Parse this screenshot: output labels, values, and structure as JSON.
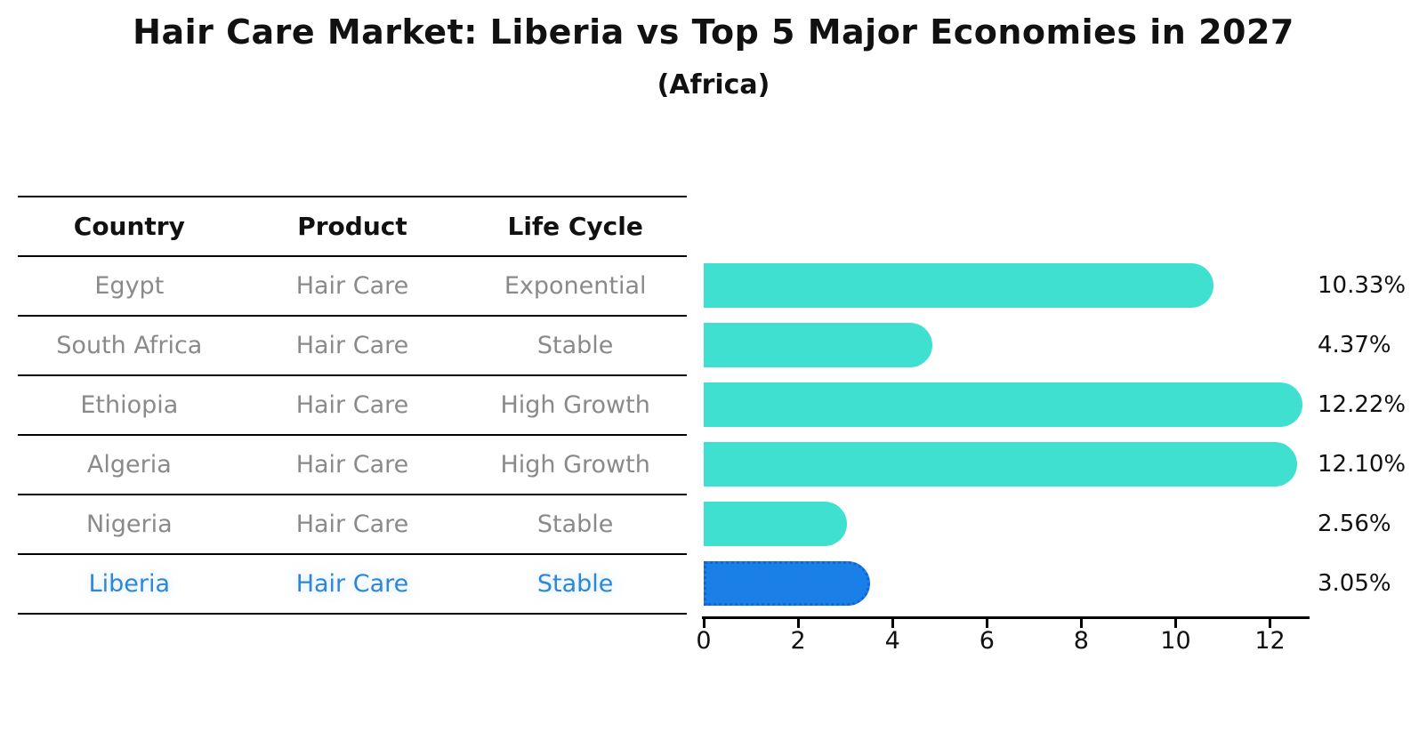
{
  "header": {
    "title": "Hair Care Market: Liberia vs Top 5 Major Economies in 2027",
    "subtitle": "(Africa)"
  },
  "table": {
    "headers": [
      "Country",
      "Product",
      "Life Cycle"
    ],
    "rows": [
      {
        "country": "Egypt",
        "product": "Hair Care",
        "life_cycle": "Exponential",
        "highlight": false
      },
      {
        "country": "South Africa",
        "product": "Hair Care",
        "life_cycle": "Stable",
        "highlight": false
      },
      {
        "country": "Ethiopia",
        "product": "Hair Care",
        "life_cycle": "High Growth",
        "highlight": false
      },
      {
        "country": "Algeria",
        "product": "Hair Care",
        "life_cycle": "High Growth",
        "highlight": false
      },
      {
        "country": "Nigeria",
        "product": "Hair Care",
        "life_cycle": "Stable",
        "highlight": false
      },
      {
        "country": "Liberia",
        "product": "Hair Care",
        "life_cycle": "Stable",
        "highlight": true
      }
    ]
  },
  "chart_data": {
    "type": "bar",
    "orientation": "horizontal",
    "title": "Hair Care Market: Liberia vs Top 5 Major Economies in 2027",
    "subtitle": "(Africa)",
    "categories": [
      "Egypt",
      "South Africa",
      "Ethiopia",
      "Algeria",
      "Nigeria",
      "Liberia"
    ],
    "values": [
      10.33,
      4.37,
      12.22,
      12.1,
      2.56,
      3.05
    ],
    "value_labels": [
      "10.33%",
      "4.37%",
      "12.22%",
      "12.10%",
      "2.56%",
      "3.05%"
    ],
    "x_ticks": [
      0,
      2,
      4,
      6,
      8,
      10,
      12
    ],
    "xlim": [
      0,
      12.8
    ],
    "grid": false,
    "legend": false,
    "bar_color": "#40E0D0",
    "highlight_index": 5,
    "highlight_color": "#1b7fe8",
    "highlight_border_color": "#1464d8",
    "highlight_text_color": "#2e86d4",
    "row_text_color": "#8a8a8a"
  }
}
